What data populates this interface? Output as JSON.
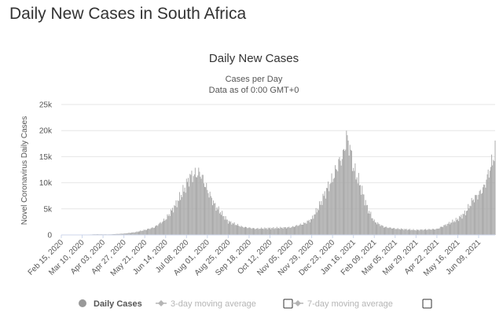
{
  "page": {
    "heading": "Daily New Cases in South Africa"
  },
  "colors": {
    "bar": "#a6a6a6",
    "grid": "#e6e6e6",
    "legend_active": "#555555",
    "legend_inactive": "#b5b5b5"
  },
  "legend": [
    {
      "label": "Daily Cases",
      "active": true,
      "checkbox": false
    },
    {
      "label": "3-day moving average",
      "active": false,
      "checkbox": true
    },
    {
      "label": "7-day moving average",
      "active": false,
      "checkbox": true
    }
  ],
  "chart_data": {
    "type": "bar",
    "title": "Daily New Cases",
    "subtitle": "Cases per Day",
    "subtitle2": "Data as of 0:00 GMT+0",
    "ylabel": "Novel Coronavirus Daily Cases",
    "xlabel": "",
    "ylim": [
      0,
      25000
    ],
    "yticks": [
      "0",
      "5k",
      "10k",
      "15k",
      "20k",
      "25k"
    ],
    "yticks_values": [
      0,
      5000,
      10000,
      15000,
      20000,
      25000
    ],
    "grid": true,
    "legend_position": "bottom",
    "x_range": [
      "2020-02-15",
      "2021-06-28"
    ],
    "xticks": [
      "Feb 15, 2020",
      "Mar 10, 2020",
      "Apr 03, 2020",
      "Apr 27, 2020",
      "May 21, 2020",
      "Jun 14, 2020",
      "Jul 08, 2020",
      "Aug 01, 2020",
      "Aug 25, 2020",
      "Sep 18, 2020",
      "Oct 12, 2020",
      "Nov 05, 2020",
      "Nov 29, 2020",
      "Dec 23, 2020",
      "Jan 16, 2021",
      "Feb 09, 2021",
      "Mar 05, 2021",
      "Mar 29, 2021",
      "Apr 22, 2021",
      "May 16, 2021",
      "Jun 09, 2021"
    ],
    "xticks_dates": [
      "2020-02-15",
      "2020-03-10",
      "2020-04-03",
      "2020-04-27",
      "2020-05-21",
      "2020-06-14",
      "2020-07-08",
      "2020-08-01",
      "2020-08-25",
      "2020-09-18",
      "2020-10-12",
      "2020-11-05",
      "2020-11-29",
      "2020-12-23",
      "2021-01-16",
      "2021-02-09",
      "2021-03-05",
      "2021-03-29",
      "2021-04-22",
      "2021-05-16",
      "2021-06-09"
    ],
    "series": [
      {
        "name": "Daily Cases",
        "points": [
          [
            "2020-02-15",
            0
          ],
          [
            "2020-03-10",
            5
          ],
          [
            "2020-03-25",
            150
          ],
          [
            "2020-04-10",
            120
          ],
          [
            "2020-04-27",
            300
          ],
          [
            "2020-05-10",
            600
          ],
          [
            "2020-05-21",
            1100
          ],
          [
            "2020-06-01",
            1700
          ],
          [
            "2020-06-14",
            3500
          ],
          [
            "2020-06-25",
            6500
          ],
          [
            "2020-07-05",
            10000
          ],
          [
            "2020-07-12",
            13000
          ],
          [
            "2020-07-18",
            13500
          ],
          [
            "2020-07-24",
            13800
          ],
          [
            "2020-08-01",
            10000
          ],
          [
            "2020-08-10",
            6500
          ],
          [
            "2020-08-25",
            3000
          ],
          [
            "2020-09-10",
            1800
          ],
          [
            "2020-09-25",
            1400
          ],
          [
            "2020-10-12",
            1500
          ],
          [
            "2020-10-25",
            1600
          ],
          [
            "2020-11-05",
            1700
          ],
          [
            "2020-11-20",
            2500
          ],
          [
            "2020-11-29",
            3500
          ],
          [
            "2020-12-08",
            6500
          ],
          [
            "2020-12-16",
            10000
          ],
          [
            "2020-12-23",
            12500
          ],
          [
            "2020-12-30",
            16000
          ],
          [
            "2021-01-04",
            17500
          ],
          [
            "2021-01-08",
            21800
          ],
          [
            "2021-01-12",
            19500
          ],
          [
            "2021-01-16",
            15000
          ],
          [
            "2021-01-24",
            11000
          ],
          [
            "2021-02-01",
            6000
          ],
          [
            "2021-02-09",
            3000
          ],
          [
            "2021-02-20",
            1800
          ],
          [
            "2021-03-05",
            1400
          ],
          [
            "2021-03-29",
            1100
          ],
          [
            "2021-04-22",
            1300
          ],
          [
            "2021-05-05",
            2500
          ],
          [
            "2021-05-16",
            3500
          ],
          [
            "2021-05-25",
            5000
          ],
          [
            "2021-06-03",
            8000
          ],
          [
            "2021-06-09",
            9000
          ],
          [
            "2021-06-15",
            10500
          ],
          [
            "2021-06-20",
            13500
          ],
          [
            "2021-06-25",
            16500
          ],
          [
            "2021-06-28",
            18500
          ]
        ]
      }
    ]
  }
}
